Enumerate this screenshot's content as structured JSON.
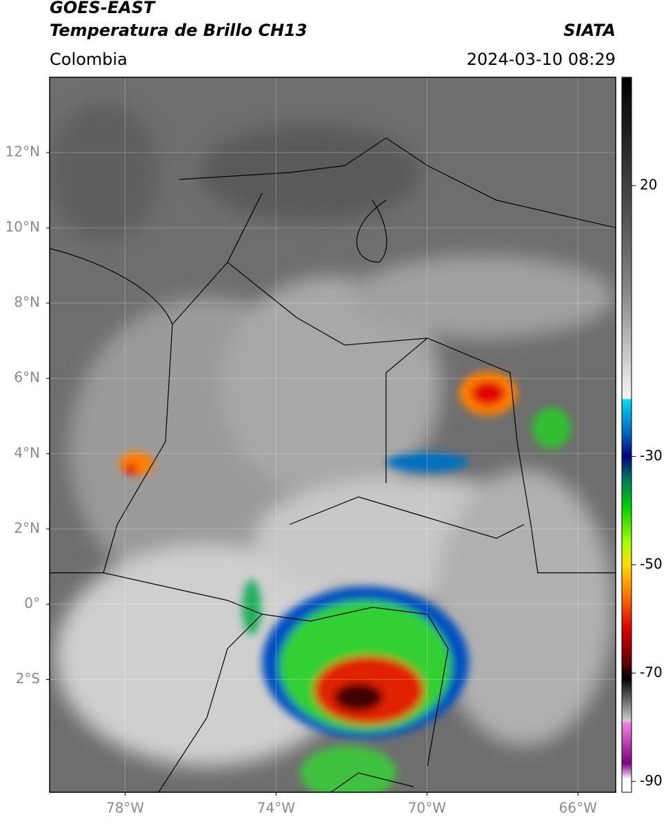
{
  "header": {
    "title": "GOES-EAST",
    "subtitle": "Temperatura de Brillo CH13",
    "source": "SIATA",
    "region": "Colombia",
    "datetime": "2024-03-10 08:29"
  },
  "map": {
    "lonlim": [
      -80,
      -65
    ],
    "latlim": [
      -5,
      14
    ],
    "lonticks": [
      {
        "value": -78,
        "label": "78°W"
      },
      {
        "value": -74,
        "label": "74°W"
      },
      {
        "value": -70,
        "label": "70°W"
      },
      {
        "value": -66,
        "label": "66°W"
      }
    ],
    "latticks": [
      {
        "value": 12,
        "label": "12°N"
      },
      {
        "value": 10,
        "label": "10°N"
      },
      {
        "value": 8,
        "label": "8°N"
      },
      {
        "value": 6,
        "label": "6°N"
      },
      {
        "value": 4,
        "label": "4°N"
      },
      {
        "value": 2,
        "label": "2°N"
      },
      {
        "value": 0,
        "label": "0°"
      },
      {
        "value": -2,
        "label": "2°S"
      }
    ],
    "grid": true
  },
  "colorbar": {
    "lim": [
      40,
      -92
    ],
    "ticks": [
      20,
      -30,
      -50,
      -70,
      -90
    ]
  }
}
